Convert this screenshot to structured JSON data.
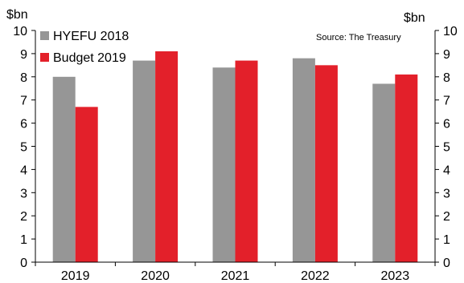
{
  "chart_data": {
    "type": "bar",
    "categories": [
      "2019",
      "2020",
      "2021",
      "2022",
      "2023"
    ],
    "series": [
      {
        "name": "HYEFU 2018",
        "color": "#969696",
        "values": [
          8.0,
          8.7,
          8.4,
          8.8,
          7.7
        ]
      },
      {
        "name": "Budget 2019",
        "color": "#e3202a",
        "values": [
          6.7,
          9.1,
          8.7,
          8.5,
          8.1
        ]
      }
    ],
    "ylim": [
      0,
      10
    ],
    "yticks": [
      0,
      1,
      2,
      3,
      4,
      5,
      6,
      7,
      8,
      9,
      10
    ],
    "left_unit": "$bn",
    "right_unit": "$bn",
    "source": "Source: The Treasury",
    "grid": false,
    "legend_position": "top-left"
  }
}
